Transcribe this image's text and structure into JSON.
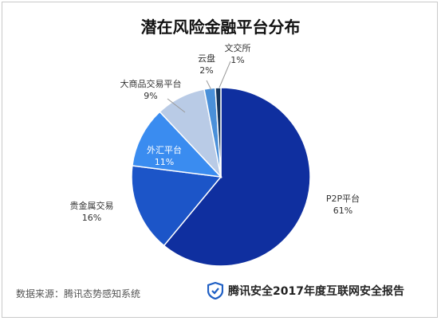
{
  "title": "潜在风险金融平台分布",
  "footer": {
    "source": "数据来源：腾讯态势感知系统",
    "brand": "腾讯安全2017年度互联网安全报告"
  },
  "colors": {
    "shield": "#1f5fc4"
  },
  "chart_data": {
    "type": "pie",
    "title": "潜在风险金融平台分布",
    "unit": "%",
    "slices": [
      {
        "name": "P2P平台",
        "value": 61,
        "label": "61%",
        "color": "#0f2f9f"
      },
      {
        "name": "贵金属交易",
        "value": 16,
        "label": "16%",
        "color": "#1c55c8"
      },
      {
        "name": "外汇平台",
        "value": 11,
        "label": "11%",
        "color": "#3a8cf0"
      },
      {
        "name": "大商品交易平台",
        "value": 9,
        "label": "9%",
        "color": "#b9cbe6"
      },
      {
        "name": "云盘",
        "value": 2,
        "label": "2%",
        "color": "#4a90d9"
      },
      {
        "name": "文交所",
        "value": 1,
        "label": "1%",
        "color": "#17365d"
      }
    ],
    "legend": "none"
  }
}
